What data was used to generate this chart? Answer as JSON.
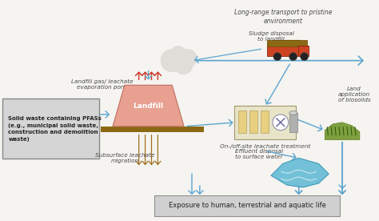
{
  "bg_color": "#f5f4f0",
  "text_color": "#4a4a4a",
  "arrow_color": "#5ba4cf",
  "arrow_color_dark": "#3a7fbf",
  "landfill_fill": "#e8a090",
  "landfill_base": "#8B6914",
  "ground_color": "#c8a060",
  "red_arrow": "#cc3322",
  "yellow_fill": "#e8d080",
  "treatment_fill": "#e8e0c0",
  "box_fill": "#d8d8d8",
  "box_edge": "#a0a0a0",
  "water_fill": "#5bb8d4",
  "cloud_fill": "#e0ddd8",
  "exposure_box_fill": "#d0d0d0",
  "labels": {
    "solid_waste": "Solid waste containing PFASs\n(e.g., municipal solid waste,\nconstruction and demolition\nwaste)",
    "landfill_gas": "Landfill gas/ leachate\nevaporation pond",
    "sludge": "Sludge disposal\nto landfill",
    "land_app": "Land\napplication\nof biosolids",
    "leachate": "On-/off-site leachate treatment",
    "subsurface": "Subsurface leachate\nmigration",
    "effluent": "Effluent disposal\nto surface water",
    "exposure": "Exposure to human, terrestrial and aquatic life",
    "long_range": "Long-range transport to pristine\nenvironment",
    "landfill_label": "Landfill"
  }
}
